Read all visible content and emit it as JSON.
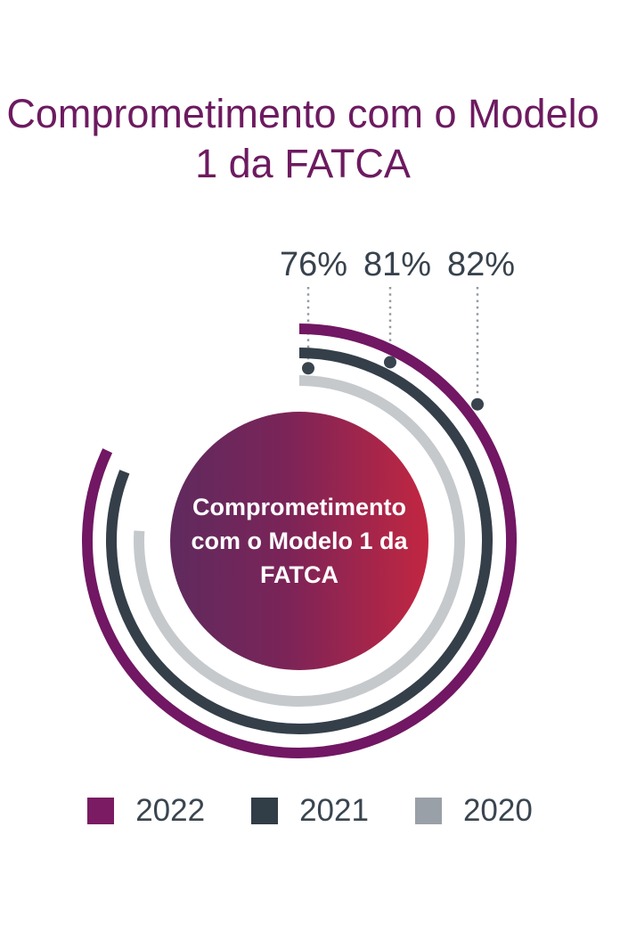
{
  "title": "Comprometimento com o Modelo 1 da FATCA",
  "center_label": "Comprometimento com o Modelo 1 da FATCA",
  "chart_data": {
    "type": "radial-gauge",
    "title": "Comprometimento com o Modelo 1 da FATCA",
    "start_position": "12-oclock",
    "sweep_direction": "clockwise",
    "value_range": [
      0,
      100
    ],
    "series": [
      {
        "name": "2022",
        "value_pct": 82,
        "ring": "outer",
        "color": "#711763"
      },
      {
        "name": "2021",
        "value_pct": 81,
        "ring": "middle",
        "color": "#343f49"
      },
      {
        "name": "2020",
        "value_pct": 76,
        "ring": "inner",
        "color": "#c6c9cc"
      }
    ],
    "callouts": [
      {
        "label": "76%",
        "series": "2020"
      },
      {
        "label": "81%",
        "series": "2021"
      },
      {
        "label": "82%",
        "series": "2022"
      }
    ],
    "legend": [
      {
        "label": "2022",
        "swatch_color": "#7a1b63"
      },
      {
        "label": "2021",
        "swatch_color": "#313d47"
      },
      {
        "label": "2020",
        "swatch_color": "#9aa0a7"
      }
    ],
    "colors": {
      "title_text": "#6d1a60",
      "percent_label_text": "#37424d",
      "callout_line": "#949aa0",
      "callout_dot": "#3a444e",
      "center_gradient_start": "#5f2a5e",
      "center_gradient_end": "#c22641",
      "center_text": "#ffffff",
      "legend_text": "#3a4550"
    }
  }
}
